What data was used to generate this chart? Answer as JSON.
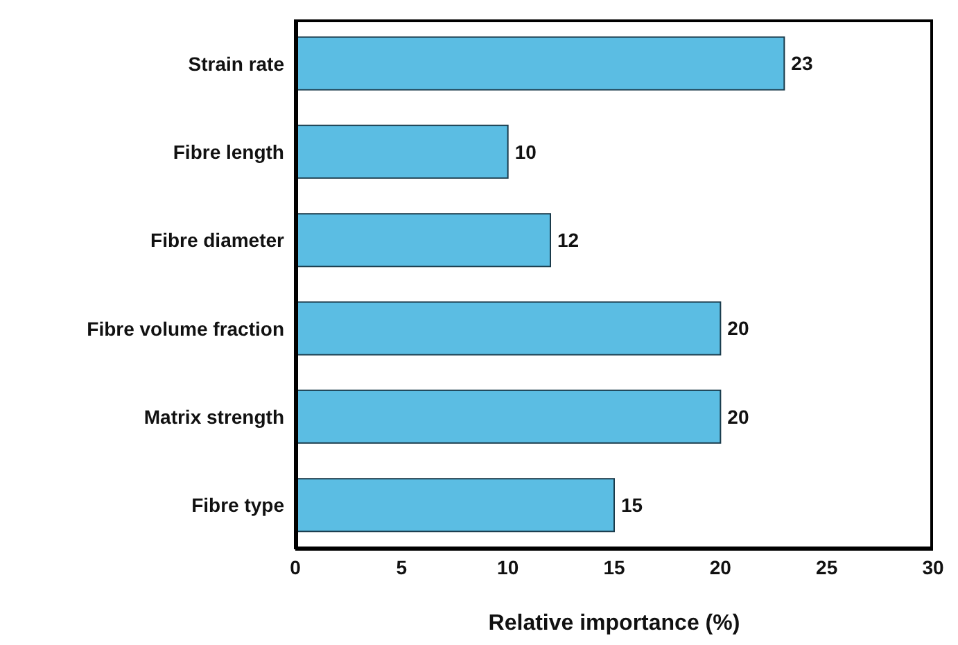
{
  "chart_data": {
    "type": "bar",
    "orientation": "horizontal",
    "xlabel": "Relative importance (%)",
    "categories": [
      "Strain rate",
      "Fibre length",
      "Fibre diameter",
      "Fibre volume fraction",
      "Matrix strength",
      "Fibre type"
    ],
    "values": [
      23,
      10,
      12,
      20,
      20,
      15
    ],
    "color": "#5bbde3",
    "xlim": [
      0,
      30
    ],
    "xticks": [
      0,
      5,
      10,
      15,
      20,
      25,
      30
    ],
    "data_labels": true
  }
}
